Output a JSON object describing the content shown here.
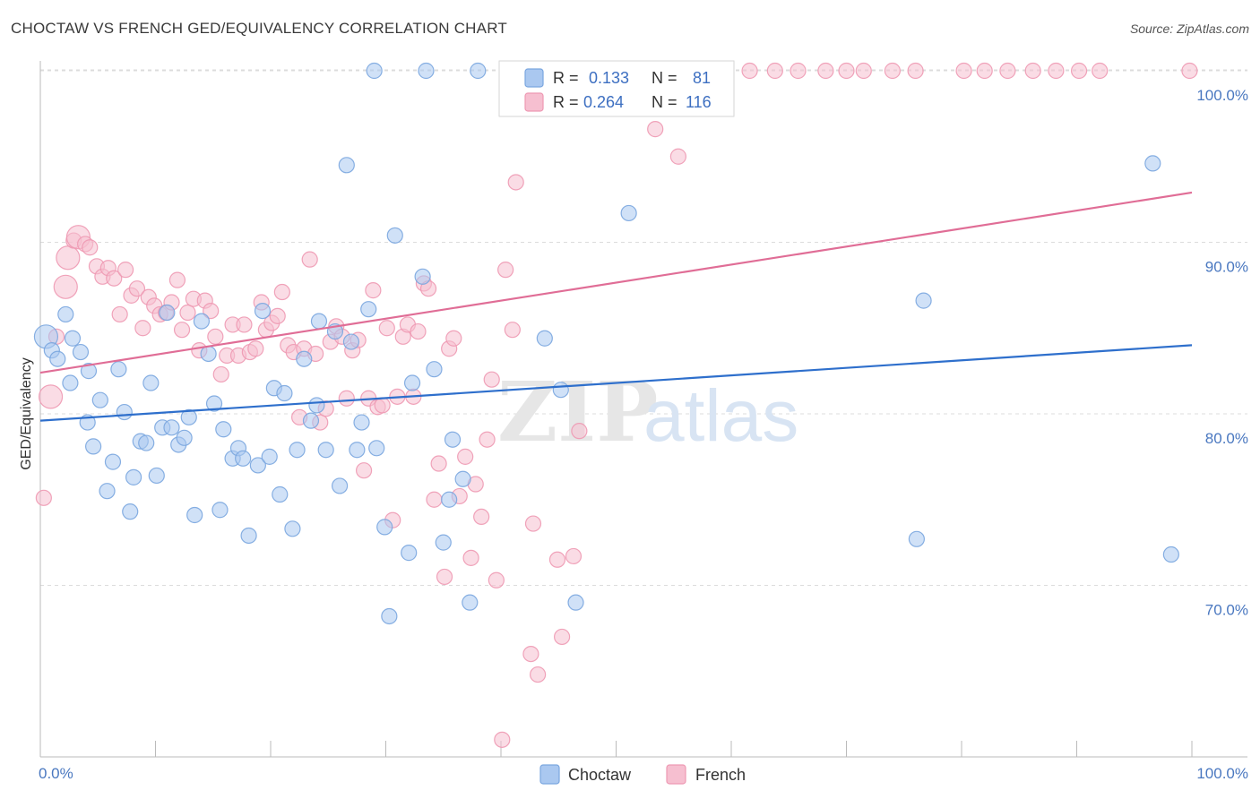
{
  "title": "CHOCTAW VS FRENCH GED/EQUIVALENCY CORRELATION CHART",
  "source": "Source: ZipAtlas.com",
  "watermark": {
    "left": "ZIP",
    "right": "atlas"
  },
  "colors": {
    "choctaw_fill": "#aac8f0",
    "choctaw_stroke": "#7aa6df",
    "choctaw_line": "#2e6fcc",
    "french_fill": "#f6bfd0",
    "french_stroke": "#ee99b3",
    "french_line": "#e06d96",
    "grid": "#dcdcdc",
    "tick_text": "#4a78c0"
  },
  "stats": [
    {
      "r_label": "R =",
      "r": "0.133",
      "n_label": "N =",
      "n": "81"
    },
    {
      "r_label": "R =",
      "r": "0.264",
      "n_label": "N =",
      "n": "116"
    }
  ],
  "chart_data": {
    "type": "scatter",
    "title": "CHOCTAW VS FRENCH GED/EQUIVALENCY CORRELATION CHART",
    "xlabel": "",
    "ylabel": "GED/Equivalency",
    "xlim": [
      0,
      100
    ],
    "ylim": [
      60,
      101.5
    ],
    "x_tick_labels": [
      "0.0%",
      "100.0%"
    ],
    "y_ticks": [
      70,
      80,
      90,
      100
    ],
    "y_tick_labels": [
      "70.0%",
      "80.0%",
      "90.0%",
      "100.0%"
    ],
    "grid": true,
    "legend_position": "bottom-center",
    "series": [
      {
        "name": "Choctaw",
        "trend": [
          [
            0,
            79.6
          ],
          [
            100,
            84.0
          ]
        ],
        "points": [
          [
            0.5,
            84.5
          ],
          [
            1.0,
            83.7
          ],
          [
            1.5,
            83.2
          ],
          [
            2.2,
            85.8
          ],
          [
            2.8,
            84.4
          ],
          [
            2.6,
            81.8
          ],
          [
            3.5,
            83.6
          ],
          [
            4.1,
            79.5
          ],
          [
            4.2,
            82.5
          ],
          [
            4.6,
            78.1
          ],
          [
            5.2,
            80.8
          ],
          [
            5.8,
            75.5
          ],
          [
            6.3,
            77.2
          ],
          [
            6.8,
            82.6
          ],
          [
            7.3,
            80.1
          ],
          [
            7.8,
            74.3
          ],
          [
            8.1,
            76.3
          ],
          [
            8.7,
            78.4
          ],
          [
            9.2,
            78.3
          ],
          [
            9.6,
            81.8
          ],
          [
            10.1,
            76.4
          ],
          [
            10.6,
            79.2
          ],
          [
            11.0,
            85.9
          ],
          [
            11.4,
            79.2
          ],
          [
            12.0,
            78.2
          ],
          [
            12.5,
            78.6
          ],
          [
            12.9,
            79.8
          ],
          [
            13.4,
            74.1
          ],
          [
            14.0,
            85.4
          ],
          [
            14.6,
            83.5
          ],
          [
            15.1,
            80.6
          ],
          [
            15.6,
            74.4
          ],
          [
            15.9,
            79.1
          ],
          [
            16.7,
            77.4
          ],
          [
            17.2,
            78.0
          ],
          [
            17.6,
            77.4
          ],
          [
            18.1,
            72.9
          ],
          [
            18.9,
            77.0
          ],
          [
            19.3,
            86.0
          ],
          [
            19.9,
            77.5
          ],
          [
            20.3,
            81.5
          ],
          [
            20.8,
            75.3
          ],
          [
            21.2,
            81.2
          ],
          [
            21.9,
            73.3
          ],
          [
            22.3,
            77.9
          ],
          [
            22.9,
            83.2
          ],
          [
            23.5,
            79.6
          ],
          [
            24.0,
            80.5
          ],
          [
            24.2,
            85.4
          ],
          [
            24.8,
            77.9
          ],
          [
            25.6,
            84.8
          ],
          [
            26.0,
            75.8
          ],
          [
            26.6,
            94.5
          ],
          [
            27.0,
            84.2
          ],
          [
            27.5,
            77.9
          ],
          [
            27.9,
            79.5
          ],
          [
            28.5,
            86.1
          ],
          [
            29.2,
            78.0
          ],
          [
            29.9,
            73.4
          ],
          [
            30.3,
            68.2
          ],
          [
            30.8,
            90.4
          ],
          [
            32.0,
            71.9
          ],
          [
            32.3,
            81.8
          ],
          [
            33.2,
            88.0
          ],
          [
            34.2,
            82.6
          ],
          [
            35.0,
            72.5
          ],
          [
            35.5,
            75.0
          ],
          [
            35.8,
            78.5
          ],
          [
            36.7,
            76.2
          ],
          [
            37.3,
            69.0
          ],
          [
            38.0,
            100.0
          ],
          [
            43.8,
            84.4
          ],
          [
            45.2,
            81.4
          ],
          [
            46.5,
            69.0
          ],
          [
            51.1,
            91.7
          ],
          [
            76.1,
            72.7
          ],
          [
            76.7,
            86.6
          ],
          [
            96.6,
            94.6
          ],
          [
            98.2,
            71.8
          ],
          [
            58.0,
            100.0
          ],
          [
            29.0,
            100.0
          ],
          [
            33.5,
            100.0
          ]
        ],
        "large_points": [
          [
            0.5,
            84.5
          ]
        ]
      },
      {
        "name": "French",
        "trend": [
          [
            0,
            82.4
          ],
          [
            100,
            92.9
          ]
        ],
        "points": [
          [
            0.3,
            75.1
          ],
          [
            0.9,
            81.0
          ],
          [
            1.4,
            84.5
          ],
          [
            2.2,
            87.4
          ],
          [
            2.4,
            89.1
          ],
          [
            2.9,
            90.1
          ],
          [
            3.3,
            90.3
          ],
          [
            3.9,
            89.9
          ],
          [
            4.3,
            89.7
          ],
          [
            4.9,
            88.6
          ],
          [
            5.4,
            88.0
          ],
          [
            5.9,
            88.5
          ],
          [
            6.4,
            87.9
          ],
          [
            6.9,
            85.8
          ],
          [
            7.4,
            88.4
          ],
          [
            7.9,
            86.9
          ],
          [
            8.4,
            87.3
          ],
          [
            8.9,
            85.0
          ],
          [
            9.4,
            86.8
          ],
          [
            9.9,
            86.3
          ],
          [
            10.4,
            85.8
          ],
          [
            10.9,
            85.9
          ],
          [
            11.4,
            86.5
          ],
          [
            11.9,
            87.8
          ],
          [
            12.3,
            84.9
          ],
          [
            12.8,
            85.9
          ],
          [
            13.3,
            86.7
          ],
          [
            13.8,
            83.7
          ],
          [
            14.3,
            86.6
          ],
          [
            14.8,
            86.0
          ],
          [
            15.2,
            84.5
          ],
          [
            15.7,
            82.3
          ],
          [
            16.2,
            83.4
          ],
          [
            16.7,
            85.2
          ],
          [
            17.2,
            83.4
          ],
          [
            17.7,
            85.2
          ],
          [
            18.2,
            83.6
          ],
          [
            18.7,
            83.8
          ],
          [
            19.2,
            86.5
          ],
          [
            19.6,
            84.9
          ],
          [
            20.1,
            85.3
          ],
          [
            20.6,
            85.7
          ],
          [
            21.0,
            87.1
          ],
          [
            21.5,
            84.0
          ],
          [
            22.0,
            83.6
          ],
          [
            22.5,
            79.8
          ],
          [
            22.9,
            83.8
          ],
          [
            23.4,
            89.0
          ],
          [
            23.9,
            83.5
          ],
          [
            24.3,
            79.5
          ],
          [
            24.8,
            80.3
          ],
          [
            25.2,
            84.2
          ],
          [
            25.7,
            85.1
          ],
          [
            26.2,
            84.5
          ],
          [
            26.6,
            80.9
          ],
          [
            27.1,
            83.7
          ],
          [
            27.6,
            84.3
          ],
          [
            28.1,
            76.7
          ],
          [
            28.5,
            80.9
          ],
          [
            28.9,
            87.2
          ],
          [
            29.3,
            80.4
          ],
          [
            29.7,
            80.5
          ],
          [
            30.1,
            85.0
          ],
          [
            30.6,
            73.8
          ],
          [
            31.0,
            81.0
          ],
          [
            31.5,
            84.5
          ],
          [
            31.9,
            85.2
          ],
          [
            32.4,
            81.0
          ],
          [
            32.8,
            84.8
          ],
          [
            33.3,
            87.6
          ],
          [
            33.7,
            87.3
          ],
          [
            34.2,
            75.0
          ],
          [
            34.6,
            77.1
          ],
          [
            35.1,
            70.5
          ],
          [
            35.5,
            83.8
          ],
          [
            35.9,
            84.4
          ],
          [
            36.4,
            75.2
          ],
          [
            36.9,
            77.5
          ],
          [
            37.4,
            71.6
          ],
          [
            37.8,
            75.9
          ],
          [
            38.3,
            74.0
          ],
          [
            38.8,
            78.5
          ],
          [
            39.2,
            82.0
          ],
          [
            39.6,
            70.3
          ],
          [
            40.1,
            61.0
          ],
          [
            40.4,
            88.4
          ],
          [
            41.0,
            84.9
          ],
          [
            41.3,
            93.5
          ],
          [
            42.6,
            66.0
          ],
          [
            42.8,
            73.6
          ],
          [
            43.2,
            64.8
          ],
          [
            44.9,
            71.5
          ],
          [
            45.3,
            67.0
          ],
          [
            46.3,
            71.7
          ],
          [
            46.8,
            79.0
          ],
          [
            47.0,
            100.0
          ],
          [
            49.4,
            100.0
          ],
          [
            53.4,
            96.6
          ],
          [
            54.0,
            100.0
          ],
          [
            55.4,
            95.0
          ],
          [
            56.3,
            100.0
          ],
          [
            57.8,
            100.0
          ],
          [
            61.6,
            100.0
          ],
          [
            63.8,
            100.0
          ],
          [
            65.8,
            100.0
          ],
          [
            68.2,
            100.0
          ],
          [
            70.0,
            100.0
          ],
          [
            71.5,
            100.0
          ],
          [
            74.0,
            100.0
          ],
          [
            76.0,
            100.0
          ],
          [
            80.2,
            100.0
          ],
          [
            82.0,
            100.0
          ],
          [
            84.0,
            100.0
          ],
          [
            86.2,
            100.0
          ],
          [
            88.2,
            100.0
          ],
          [
            90.2,
            100.0
          ],
          [
            92.0,
            100.0
          ],
          [
            99.8,
            100.0
          ]
        ],
        "large_points": [
          [
            0.9,
            81.0
          ],
          [
            2.2,
            87.4
          ],
          [
            2.4,
            89.1
          ],
          [
            3.3,
            90.3
          ]
        ]
      }
    ]
  }
}
